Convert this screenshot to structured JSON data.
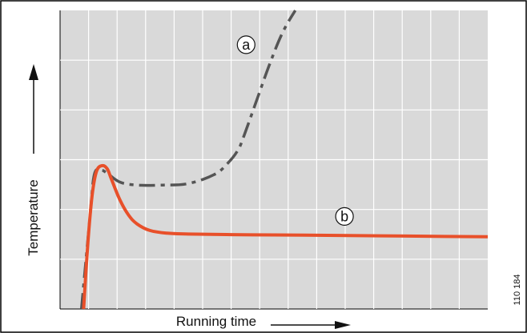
{
  "colors": {
    "plot_bg": "#d9d9d9",
    "grid": "#ffffff",
    "curve_a": "#555555",
    "curve_b": "#e8502a",
    "frame": "#000000"
  },
  "figure_code": "110 184",
  "chart_data": {
    "type": "line",
    "title": "",
    "xlabel": "Running time",
    "ylabel": "Temperature",
    "xlim": [
      0,
      100
    ],
    "ylim": [
      0,
      100
    ],
    "grid": true,
    "legend": "none",
    "series": [
      {
        "name": "a",
        "style": "dash-dot",
        "x": [
          5.0,
          7.0,
          8.0,
          9.5,
          11.0,
          14.0,
          18.0,
          24.0,
          30.0,
          36.0,
          39.0,
          41.5,
          43.0,
          46.0,
          49.0,
          52.0,
          55.0
        ],
        "y": [
          0,
          31,
          45,
          46.5,
          45.5,
          42.5,
          41.5,
          41.5,
          42.0,
          45.0,
          48.5,
          53.0,
          58.0,
          70.0,
          82.0,
          92.5,
          100
        ]
      },
      {
        "name": "b",
        "style": "solid",
        "x": [
          5.5,
          6.5,
          7.5,
          8.5,
          9.8,
          11.0,
          12.0,
          14.0,
          16.0,
          18.0,
          21.0,
          25.0,
          30.0,
          40.0,
          50.0,
          60.0,
          75.0,
          90.0,
          100.0
        ],
        "y": [
          0,
          22,
          38,
          46,
          48,
          47,
          43.5,
          36.5,
          31.5,
          28.5,
          26.3,
          25.4,
          25.1,
          24.9,
          24.8,
          24.7,
          24.5,
          24.3,
          24.2
        ]
      }
    ],
    "annotations": [
      {
        "text": "a",
        "x": 43.5,
        "y": 88.5,
        "target": "series a"
      },
      {
        "text": "b",
        "x": 66.5,
        "y": 31.0,
        "target": "series b"
      }
    ]
  }
}
